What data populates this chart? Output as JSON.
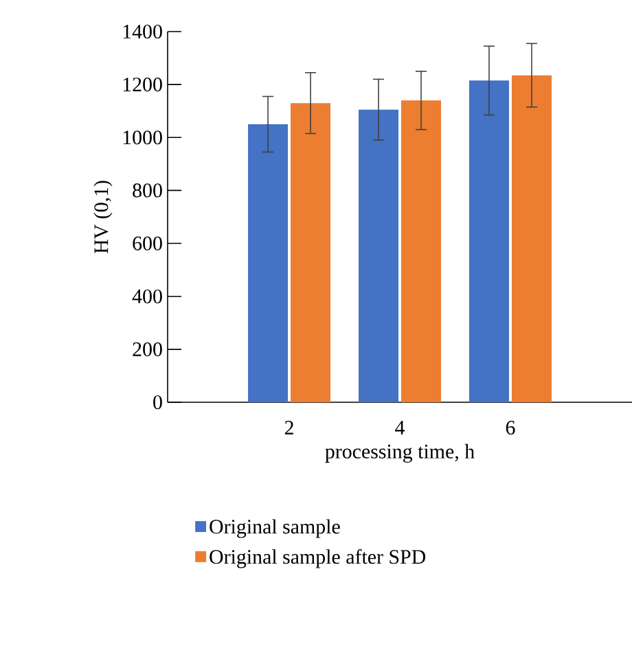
{
  "chart_data": {
    "type": "bar",
    "xlabel": "processing time, h",
    "ylabel": "HV (0,1)",
    "categories": [
      "2",
      "4",
      "6"
    ],
    "series": [
      {
        "name": "Original sample",
        "color": "#4472c4",
        "values": [
          1050,
          1105,
          1215
        ],
        "errors": [
          105,
          115,
          130
        ]
      },
      {
        "name": "Original sample after SPD",
        "color": "#ed7d31",
        "values": [
          1130,
          1140,
          1235
        ],
        "errors": [
          115,
          110,
          120
        ]
      }
    ],
    "ylim": [
      0,
      1400
    ],
    "yticks": [
      0,
      200,
      400,
      600,
      800,
      1000,
      1200,
      1400
    ],
    "grid": false,
    "legend": "bottom"
  }
}
